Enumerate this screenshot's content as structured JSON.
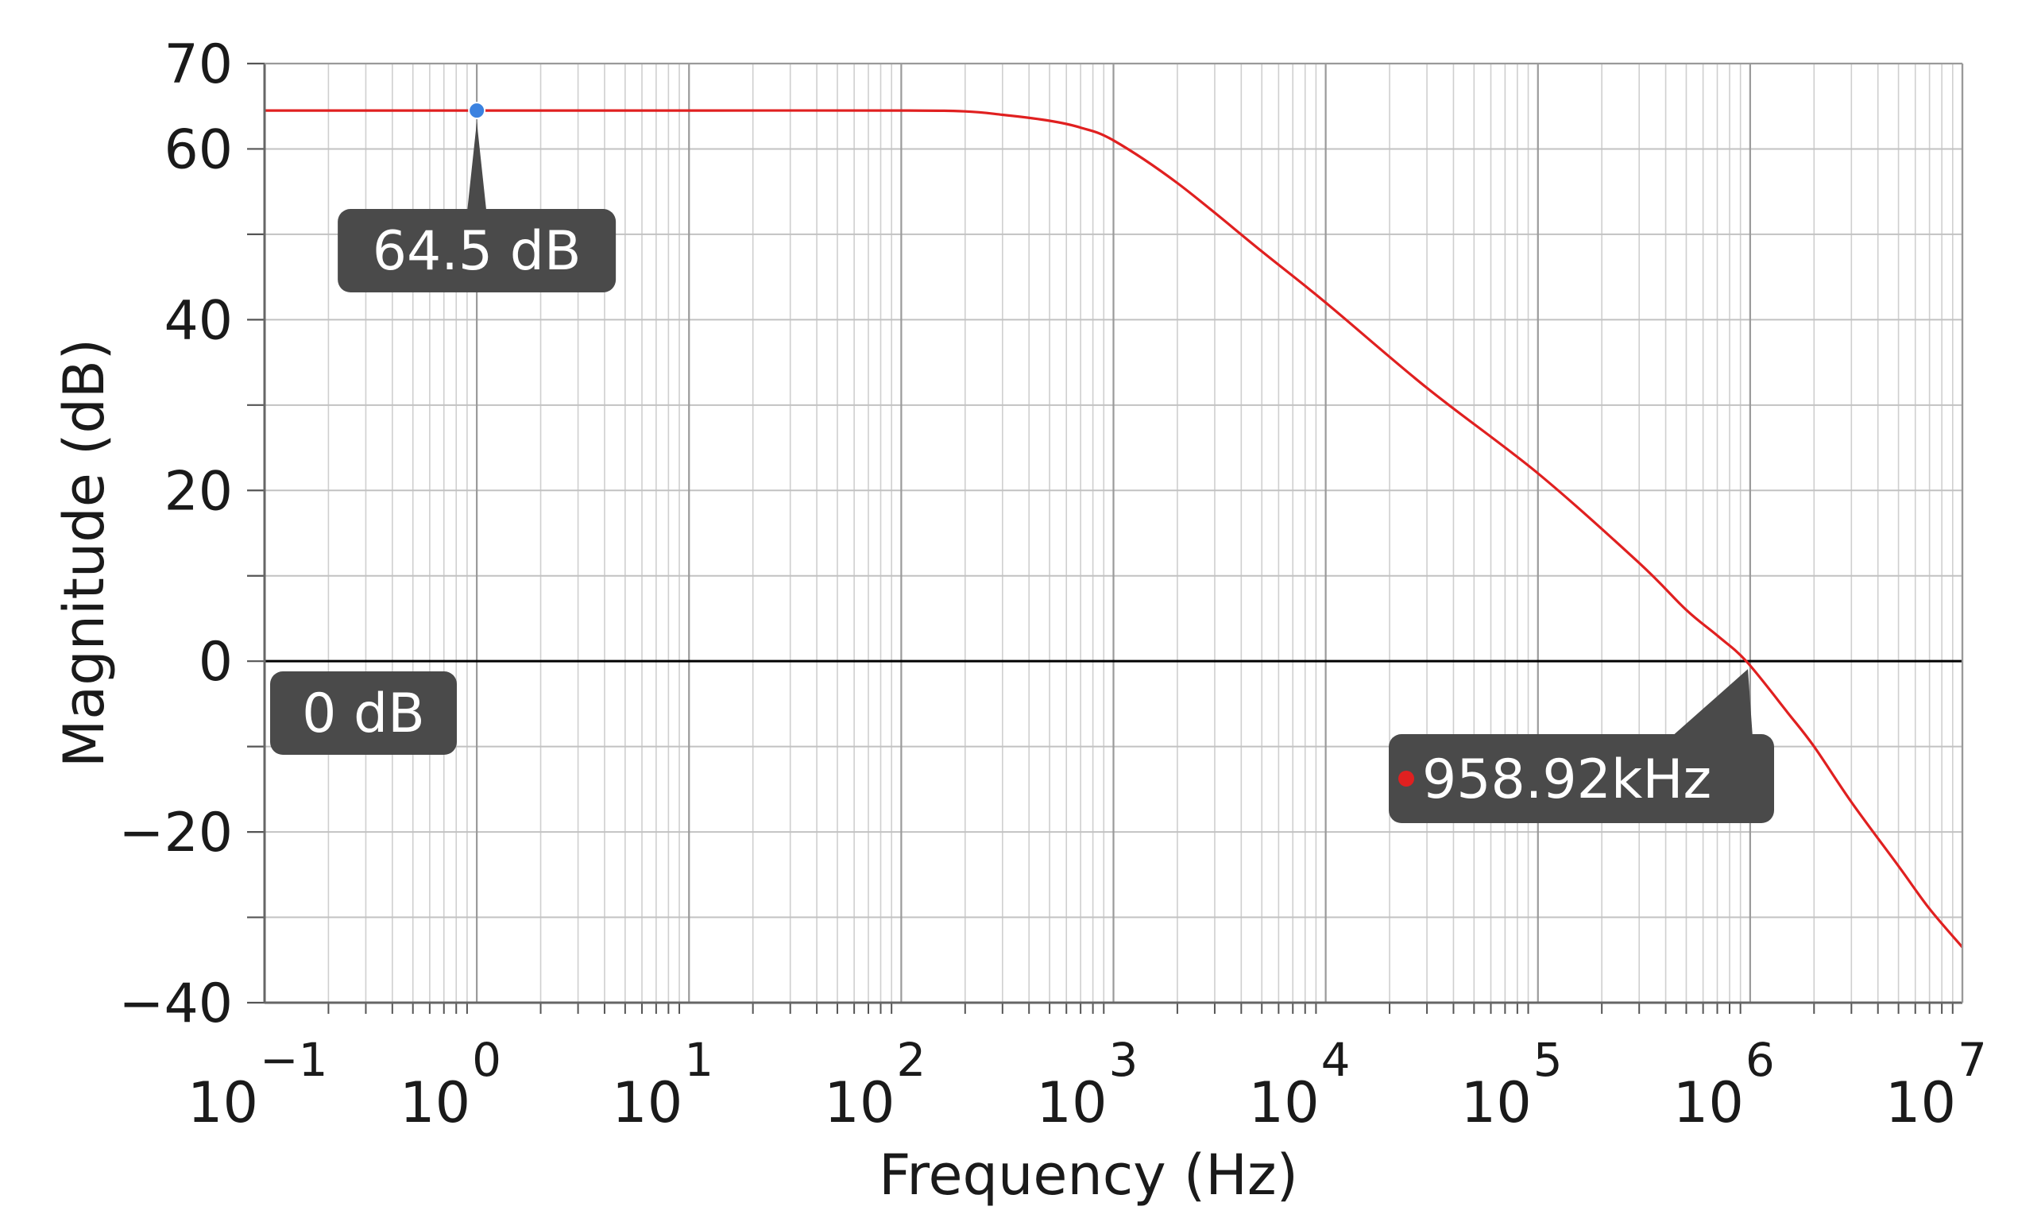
{
  "chart_data": {
    "type": "line",
    "title": "",
    "xlabel": "Frequency (Hz)",
    "ylabel": "Magnitude (dB)",
    "x_scale": "log",
    "xlim": [
      0.1,
      10000000
    ],
    "ylim": [
      -40,
      70
    ],
    "grid": true,
    "x_ticks": [
      {
        "base": "10",
        "exp": "−1",
        "value": 0.1
      },
      {
        "base": "10",
        "exp": "0",
        "value": 1
      },
      {
        "base": "10",
        "exp": "1",
        "value": 10
      },
      {
        "base": "10",
        "exp": "2",
        "value": 100
      },
      {
        "base": "10",
        "exp": "3",
        "value": 1000
      },
      {
        "base": "10",
        "exp": "4",
        "value": 10000
      },
      {
        "base": "10",
        "exp": "5",
        "value": 100000
      },
      {
        "base": "10",
        "exp": "6",
        "value": 1000000
      },
      {
        "base": "10",
        "exp": "7",
        "value": 10000000
      }
    ],
    "y_ticks": [
      {
        "label": "70",
        "value": 70
      },
      {
        "label": "60",
        "value": 60
      },
      {
        "label": "40",
        "value": 40
      },
      {
        "label": "20",
        "value": 20
      },
      {
        "label": "0",
        "value": 0
      },
      {
        "label": "−20",
        "value": -20
      },
      {
        "label": "−40",
        "value": -40
      }
    ],
    "series": [
      {
        "color": "#e02020",
        "x": [
          0.1,
          1,
          10,
          100,
          200,
          300,
          500,
          700,
          1000,
          2000,
          5000,
          10000,
          30000,
          100000,
          300000,
          500000,
          700000,
          958920,
          1500000,
          2000000,
          3000000,
          5000000,
          7000000,
          10000000
        ],
        "y": [
          64.5,
          64.5,
          64.5,
          64.5,
          64.4,
          64.0,
          63.3,
          62.5,
          61.0,
          56.0,
          48.0,
          42.0,
          32.0,
          22.0,
          11.5,
          6.0,
          3.0,
          0.0,
          -6.0,
          -10.0,
          -16.5,
          -24.0,
          -29.0,
          -33.5
        ]
      }
    ],
    "reference_lines": [
      {
        "y": 0,
        "color": "#000000"
      }
    ],
    "annotations": [
      {
        "label": "64.5 dB",
        "x": 1,
        "y": 64.5,
        "marker_color": "#3b82e0"
      },
      {
        "label": "0 dB",
        "x": 0.15,
        "y": -7
      },
      {
        "label": "958.92kHz",
        "x": 958920,
        "y": 0,
        "marker_color": "#e02020"
      }
    ],
    "callout_color": "#4a4a4a"
  }
}
